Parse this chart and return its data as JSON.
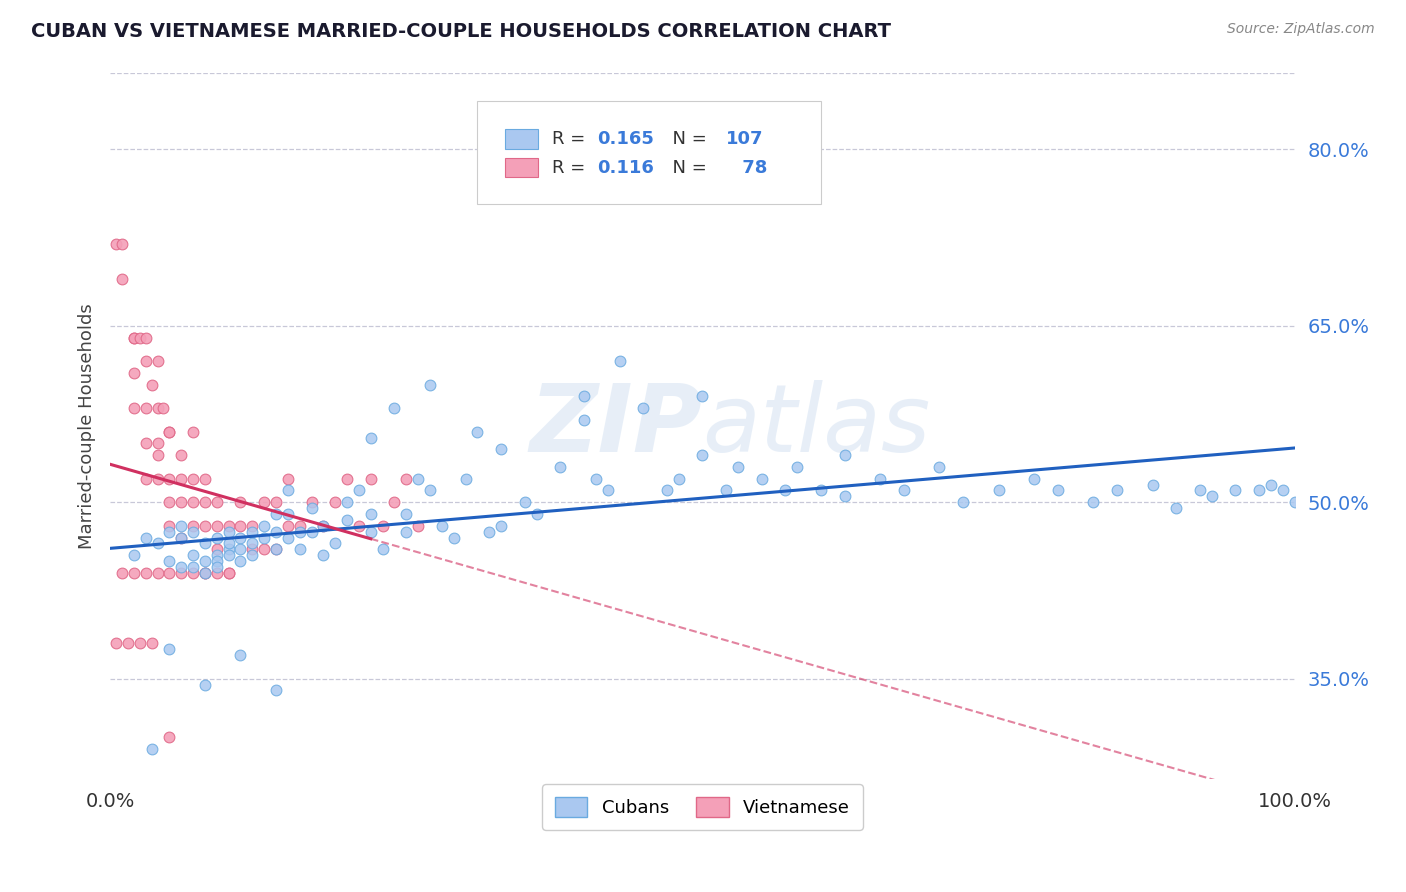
{
  "title": "CUBAN VS VIETNAMESE MARRIED-COUPLE HOUSEHOLDS CORRELATION CHART",
  "source": "Source: ZipAtlas.com",
  "ylabel": "Married-couple Households",
  "ytick_labels": [
    "35.0%",
    "50.0%",
    "65.0%",
    "80.0%"
  ],
  "ytick_values": [
    0.35,
    0.5,
    0.65,
    0.8
  ],
  "xlim": [
    0.0,
    1.0
  ],
  "ylim": [
    0.265,
    0.865
  ],
  "cubans_color": "#aac8f0",
  "vietnamese_color": "#f4a0b8",
  "cubans_edge": "#6aaae0",
  "vietnamese_edge": "#e06888",
  "trendline_cubans_color": "#2060c0",
  "trendline_vietnamese_color": "#d03060",
  "grid_color": "#c8c8d8",
  "watermark": "ZIPatlas",
  "cubans_N": 107,
  "vietnamese_N": 78,
  "cubans_R": 0.165,
  "vietnamese_R": 0.116,
  "cubans_scatter_x": [
    0.02,
    0.03,
    0.04,
    0.05,
    0.05,
    0.06,
    0.06,
    0.06,
    0.07,
    0.07,
    0.07,
    0.08,
    0.08,
    0.08,
    0.09,
    0.09,
    0.09,
    0.09,
    0.1,
    0.1,
    0.1,
    0.1,
    0.11,
    0.11,
    0.11,
    0.12,
    0.12,
    0.12,
    0.13,
    0.13,
    0.14,
    0.14,
    0.14,
    0.15,
    0.15,
    0.15,
    0.16,
    0.16,
    0.17,
    0.17,
    0.18,
    0.19,
    0.2,
    0.2,
    0.21,
    0.22,
    0.22,
    0.23,
    0.24,
    0.25,
    0.25,
    0.26,
    0.27,
    0.28,
    0.29,
    0.3,
    0.31,
    0.32,
    0.33,
    0.35,
    0.36,
    0.38,
    0.4,
    0.41,
    0.42,
    0.43,
    0.45,
    0.47,
    0.48,
    0.5,
    0.52,
    0.53,
    0.55,
    0.57,
    0.58,
    0.6,
    0.62,
    0.65,
    0.67,
    0.7,
    0.72,
    0.75,
    0.78,
    0.8,
    0.83,
    0.85,
    0.88,
    0.9,
    0.92,
    0.93,
    0.95,
    0.97,
    0.98,
    0.99,
    1.0,
    0.05,
    0.08,
    0.11,
    0.14,
    0.18,
    0.22,
    0.27,
    0.33,
    0.4,
    0.5,
    0.62,
    0.035
  ],
  "cubans_scatter_y": [
    0.455,
    0.47,
    0.465,
    0.475,
    0.45,
    0.47,
    0.48,
    0.445,
    0.455,
    0.475,
    0.445,
    0.465,
    0.45,
    0.44,
    0.455,
    0.45,
    0.47,
    0.445,
    0.46,
    0.475,
    0.455,
    0.465,
    0.47,
    0.46,
    0.45,
    0.475,
    0.465,
    0.455,
    0.48,
    0.47,
    0.49,
    0.475,
    0.46,
    0.47,
    0.49,
    0.51,
    0.475,
    0.46,
    0.495,
    0.475,
    0.48,
    0.465,
    0.5,
    0.485,
    0.51,
    0.475,
    0.49,
    0.46,
    0.58,
    0.49,
    0.475,
    0.52,
    0.51,
    0.48,
    0.47,
    0.52,
    0.56,
    0.475,
    0.48,
    0.5,
    0.49,
    0.53,
    0.57,
    0.52,
    0.51,
    0.62,
    0.58,
    0.51,
    0.52,
    0.54,
    0.51,
    0.53,
    0.52,
    0.51,
    0.53,
    0.51,
    0.54,
    0.52,
    0.51,
    0.53,
    0.5,
    0.51,
    0.52,
    0.51,
    0.5,
    0.51,
    0.515,
    0.495,
    0.51,
    0.505,
    0.51,
    0.51,
    0.515,
    0.51,
    0.5,
    0.375,
    0.345,
    0.37,
    0.34,
    0.455,
    0.555,
    0.6,
    0.545,
    0.59,
    0.59,
    0.505,
    0.29
  ],
  "vietnamese_scatter_x": [
    0.005,
    0.01,
    0.01,
    0.02,
    0.02,
    0.02,
    0.02,
    0.025,
    0.03,
    0.03,
    0.03,
    0.03,
    0.03,
    0.035,
    0.04,
    0.04,
    0.04,
    0.04,
    0.04,
    0.045,
    0.05,
    0.05,
    0.05,
    0.05,
    0.05,
    0.06,
    0.06,
    0.06,
    0.06,
    0.07,
    0.07,
    0.07,
    0.07,
    0.08,
    0.08,
    0.08,
    0.08,
    0.09,
    0.09,
    0.09,
    0.1,
    0.1,
    0.11,
    0.11,
    0.12,
    0.12,
    0.13,
    0.13,
    0.14,
    0.14,
    0.15,
    0.15,
    0.16,
    0.17,
    0.18,
    0.19,
    0.2,
    0.21,
    0.22,
    0.23,
    0.24,
    0.25,
    0.26,
    0.01,
    0.02,
    0.03,
    0.04,
    0.05,
    0.06,
    0.07,
    0.08,
    0.09,
    0.1,
    0.005,
    0.015,
    0.025,
    0.035,
    0.05
  ],
  "vietnamese_scatter_y": [
    0.72,
    0.72,
    0.69,
    0.64,
    0.64,
    0.61,
    0.58,
    0.64,
    0.62,
    0.58,
    0.55,
    0.52,
    0.64,
    0.6,
    0.58,
    0.55,
    0.54,
    0.52,
    0.62,
    0.58,
    0.56,
    0.52,
    0.5,
    0.48,
    0.56,
    0.54,
    0.52,
    0.5,
    0.47,
    0.52,
    0.5,
    0.48,
    0.56,
    0.52,
    0.5,
    0.48,
    0.44,
    0.5,
    0.48,
    0.46,
    0.48,
    0.44,
    0.5,
    0.48,
    0.48,
    0.46,
    0.5,
    0.46,
    0.5,
    0.46,
    0.52,
    0.48,
    0.48,
    0.5,
    0.48,
    0.5,
    0.52,
    0.48,
    0.52,
    0.48,
    0.5,
    0.52,
    0.48,
    0.44,
    0.44,
    0.44,
    0.44,
    0.44,
    0.44,
    0.44,
    0.44,
    0.44,
    0.44,
    0.38,
    0.38,
    0.38,
    0.38,
    0.3
  ]
}
